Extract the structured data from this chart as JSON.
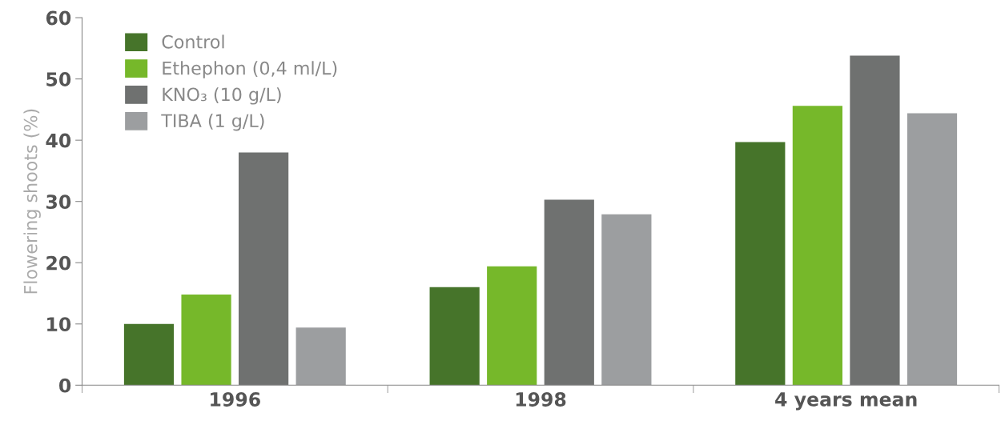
{
  "chart_data": {
    "type": "bar",
    "ylabel": "Flowering shoots (%)",
    "categories": [
      "1996",
      "1998",
      "4 years mean"
    ],
    "series": [
      {
        "name": "Control",
        "color": "#46742a",
        "values": [
          10,
          16,
          39.7
        ]
      },
      {
        "name": "Ethephon (0,4 ml/L)",
        "color": "#76b82a",
        "values": [
          14.8,
          19.4,
          45.6
        ]
      },
      {
        "name": "KNO₃ (10 g/L)",
        "color": "#6f7170",
        "values": [
          38,
          30.3,
          53.8
        ]
      },
      {
        "name": "TIBA (1 g/L)",
        "color": "#9c9ea0",
        "values": [
          9.4,
          27.9,
          44.4
        ]
      }
    ],
    "ylim": [
      0,
      60
    ],
    "yticks": [
      0,
      10,
      20,
      30,
      40,
      50,
      60
    ],
    "grid": false,
    "legend": "top left"
  }
}
